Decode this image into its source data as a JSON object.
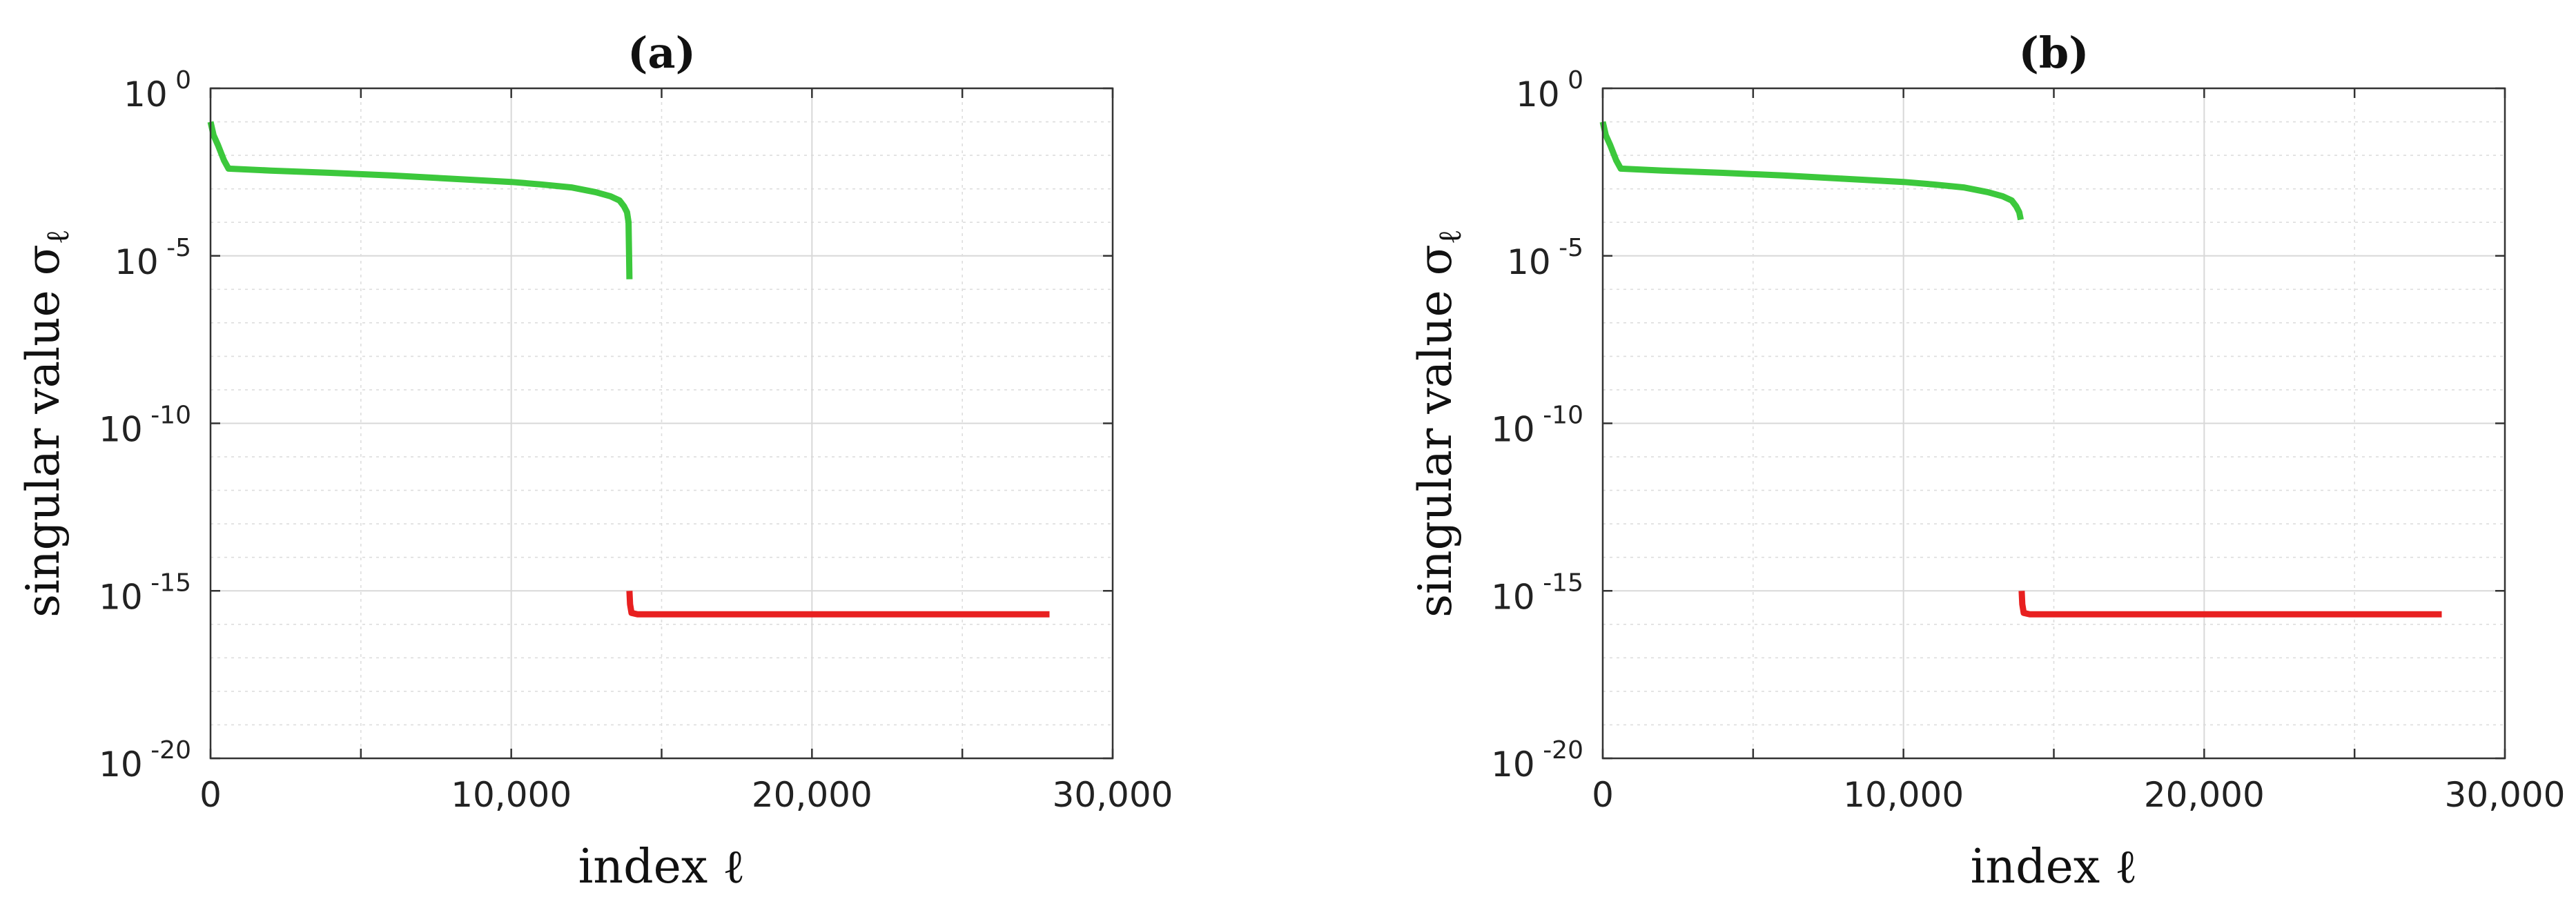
{
  "chart_data": [
    {
      "type": "line",
      "title": "(a)",
      "xlabel": "index ℓ",
      "ylabel": "singular value σ",
      "ylabel_subscript": "ℓ",
      "yscale": "log",
      "xlim": [
        0,
        30000
      ],
      "ylim": [
        1e-20,
        1
      ],
      "x_ticks": [
        "0",
        "10,000",
        "20,000",
        "30,000"
      ],
      "y_ticks": [
        {
          "base": "10",
          "exp": "0"
        },
        {
          "base": "10",
          "exp": "-5"
        },
        {
          "base": "10",
          "exp": "-10"
        },
        {
          "base": "10",
          "exp": "-15"
        },
        {
          "base": "10",
          "exp": "-20"
        }
      ],
      "grid": true,
      "series": [
        {
          "color": "#3cc83c",
          "x": [
            0,
            100,
            250,
            450,
            600,
            2000,
            4000,
            6000,
            8000,
            10000,
            11000,
            12000,
            12800,
            13300,
            13600,
            13750,
            13850,
            13900,
            13920,
            13930
          ],
          "y": [
            0.1,
            0.04,
            0.02,
            0.007,
            0.004,
            0.0035,
            0.003,
            0.0025,
            0.002,
            0.0016,
            0.00135,
            0.0011,
            0.0008,
            0.0006,
            0.00045,
            0.0003,
            0.0002,
            0.0001,
            1e-05,
            2e-06
          ]
        },
        {
          "color": "#e82020",
          "x": [
            13930,
            13950,
            14000,
            14200,
            15000,
            20000,
            25000,
            27900
          ],
          "y": [
            1e-15,
            4e-16,
            2.2e-16,
            2e-16,
            2e-16,
            2e-16,
            2e-16,
            2e-16
          ]
        }
      ]
    },
    {
      "type": "line",
      "title": "(b)",
      "xlabel": "index ℓ",
      "ylabel": "singular value σ",
      "ylabel_subscript": "ℓ",
      "yscale": "log",
      "xlim": [
        0,
        30000
      ],
      "ylim": [
        1e-20,
        1
      ],
      "x_ticks": [
        "0",
        "10,000",
        "20,000",
        "30,000"
      ],
      "y_ticks": [
        {
          "base": "10",
          "exp": "0"
        },
        {
          "base": "10",
          "exp": "-5"
        },
        {
          "base": "10",
          "exp": "-10"
        },
        {
          "base": "10",
          "exp": "-15"
        },
        {
          "base": "10",
          "exp": "-20"
        }
      ],
      "grid": true,
      "series": [
        {
          "color": "#3cc83c",
          "x": [
            0,
            100,
            250,
            450,
            600,
            2000,
            4000,
            6000,
            8000,
            10000,
            11000,
            12000,
            12800,
            13300,
            13600,
            13750,
            13850,
            13900
          ],
          "y": [
            0.1,
            0.04,
            0.02,
            0.007,
            0.004,
            0.0035,
            0.003,
            0.0025,
            0.002,
            0.0016,
            0.00135,
            0.0011,
            0.0008,
            0.0006,
            0.00045,
            0.0003,
            0.0002,
            0.00012
          ]
        },
        {
          "color": "#e82020",
          "x": [
            13930,
            13950,
            14000,
            14200,
            15000,
            20000,
            25000,
            27900
          ],
          "y": [
            1e-15,
            4e-16,
            2.2e-16,
            2e-16,
            2e-16,
            2e-16,
            2e-16,
            2e-16
          ]
        }
      ]
    }
  ]
}
